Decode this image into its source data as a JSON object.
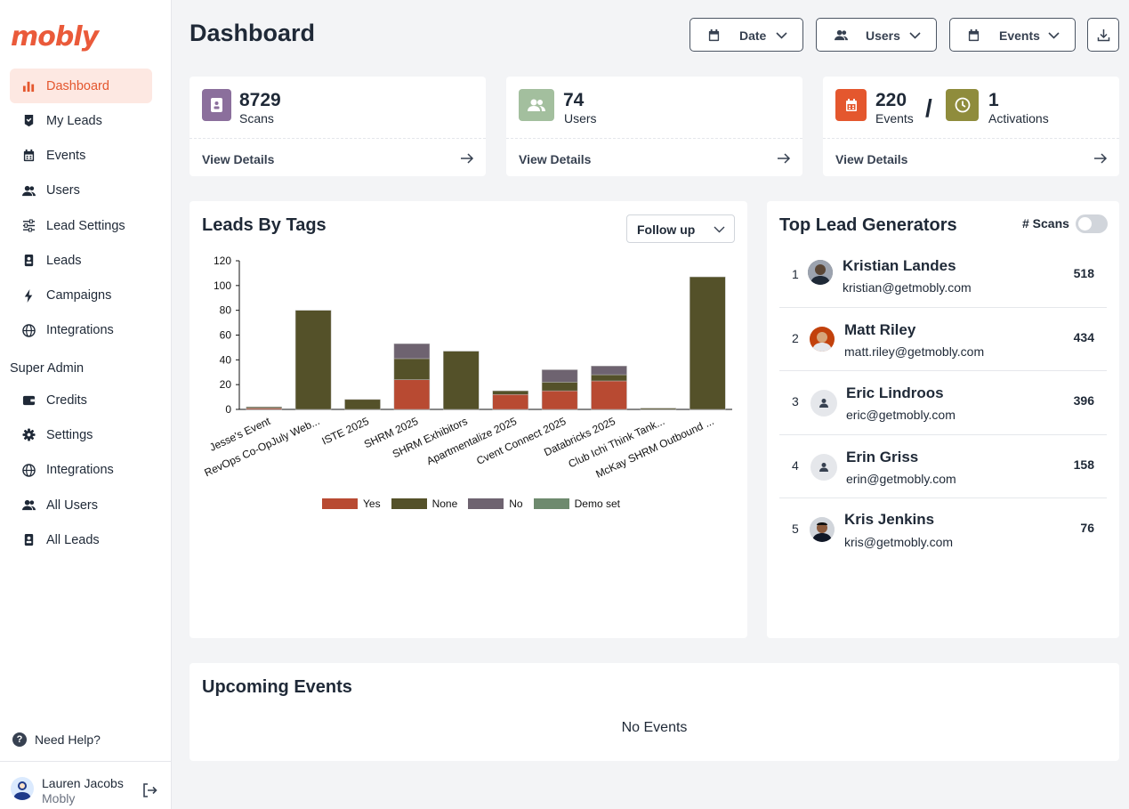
{
  "app": {
    "logo": "mobly"
  },
  "sidebar": {
    "items": [
      {
        "label": "Dashboard",
        "icon": "bar-chart-icon",
        "active": true
      },
      {
        "label": "My Leads",
        "icon": "badge-icon"
      },
      {
        "label": "Events",
        "icon": "calendar-icon"
      },
      {
        "label": "Users",
        "icon": "users-icon"
      },
      {
        "label": "Lead Settings",
        "icon": "sliders-icon"
      },
      {
        "label": "Leads",
        "icon": "id-card-icon"
      },
      {
        "label": "Campaigns",
        "icon": "bolt-icon"
      },
      {
        "label": "Integrations",
        "icon": "globe-icon"
      }
    ],
    "section_label": "Super Admin",
    "admin_items": [
      {
        "label": "Credits",
        "icon": "wallet-icon"
      },
      {
        "label": "Settings",
        "icon": "gear-icon"
      },
      {
        "label": "Integrations",
        "icon": "globe-icon"
      },
      {
        "label": "All Users",
        "icon": "users-icon"
      },
      {
        "label": "All Leads",
        "icon": "id-card-icon"
      }
    ],
    "help": "Need Help?",
    "user": {
      "name": "Lauren Jacobs",
      "org": "Mobly"
    }
  },
  "header": {
    "title": "Dashboard",
    "filters": [
      {
        "label": "Date",
        "icon": "calendar-icon"
      },
      {
        "label": "Users",
        "icon": "users-icon"
      },
      {
        "label": "Events",
        "icon": "calendar-icon"
      }
    ]
  },
  "stats": {
    "scans": {
      "value": "8729",
      "label": "Scans",
      "color": "#8b6f9c"
    },
    "users": {
      "value": "74",
      "label": "Users",
      "color": "#a3bf9e"
    },
    "events": {
      "value": "220",
      "label": "Events",
      "color": "#e4572e"
    },
    "separator": "/",
    "activations": {
      "value": "1",
      "label": "Activations",
      "color": "#8f8c3c"
    },
    "view_details": "View Details"
  },
  "leads_by_tags": {
    "title": "Leads By Tags",
    "select_value": "Follow up"
  },
  "chart_data": {
    "type": "bar",
    "stacked": true,
    "categories": [
      "Jesse's Event",
      "RevOps Co-OpJuly Web...",
      "ISTE 2025",
      "SHRM 2025",
      "SHRM Exhibitors",
      "Apartmentalize 2025",
      "Cvent Connect 2025",
      "Databricks 2025",
      "Club Ichi Think Tank...",
      "McKay SHRM Outbound ..."
    ],
    "series": [
      {
        "name": "Yes",
        "color": "#b84a32",
        "values": [
          1,
          0,
          0,
          24,
          0,
          12,
          15,
          23,
          0,
          0
        ]
      },
      {
        "name": "None",
        "color": "#545129",
        "values": [
          1,
          80,
          8,
          17,
          47,
          3,
          7,
          5,
          1,
          107
        ]
      },
      {
        "name": "No",
        "color": "#6e6370",
        "values": [
          0,
          0,
          0,
          12,
          0,
          0,
          10,
          7,
          0,
          0
        ]
      },
      {
        "name": "Demo set",
        "color": "#6e8a6e",
        "values": [
          0,
          0,
          0,
          0,
          0,
          0,
          0,
          0,
          0,
          0
        ]
      }
    ],
    "yticks": [
      "0",
      "20",
      "40",
      "60",
      "80",
      "100",
      "120"
    ],
    "ylim": [
      0,
      120
    ],
    "legend_position": "bottom"
  },
  "top_generators": {
    "title": "Top Lead Generators",
    "toggle_label": "# Scans",
    "rows": [
      {
        "rank": "1",
        "name": "Kristian Landes",
        "email": "kristian@getmobly.com",
        "count": "518",
        "avatar": "photo"
      },
      {
        "rank": "2",
        "name": "Matt Riley",
        "email": "matt.riley@getmobly.com",
        "count": "434",
        "avatar": "photo"
      },
      {
        "rank": "3",
        "name": "Eric Lindroos",
        "email": "eric@getmobly.com",
        "count": "396",
        "avatar": "placeholder"
      },
      {
        "rank": "4",
        "name": "Erin Griss",
        "email": "erin@getmobly.com",
        "count": "158",
        "avatar": "placeholder"
      },
      {
        "rank": "5",
        "name": "Kris Jenkins",
        "email": "kris@getmobly.com",
        "count": "76",
        "avatar": "photo"
      }
    ]
  },
  "upcoming": {
    "title": "Upcoming Events",
    "empty": "No Events"
  }
}
